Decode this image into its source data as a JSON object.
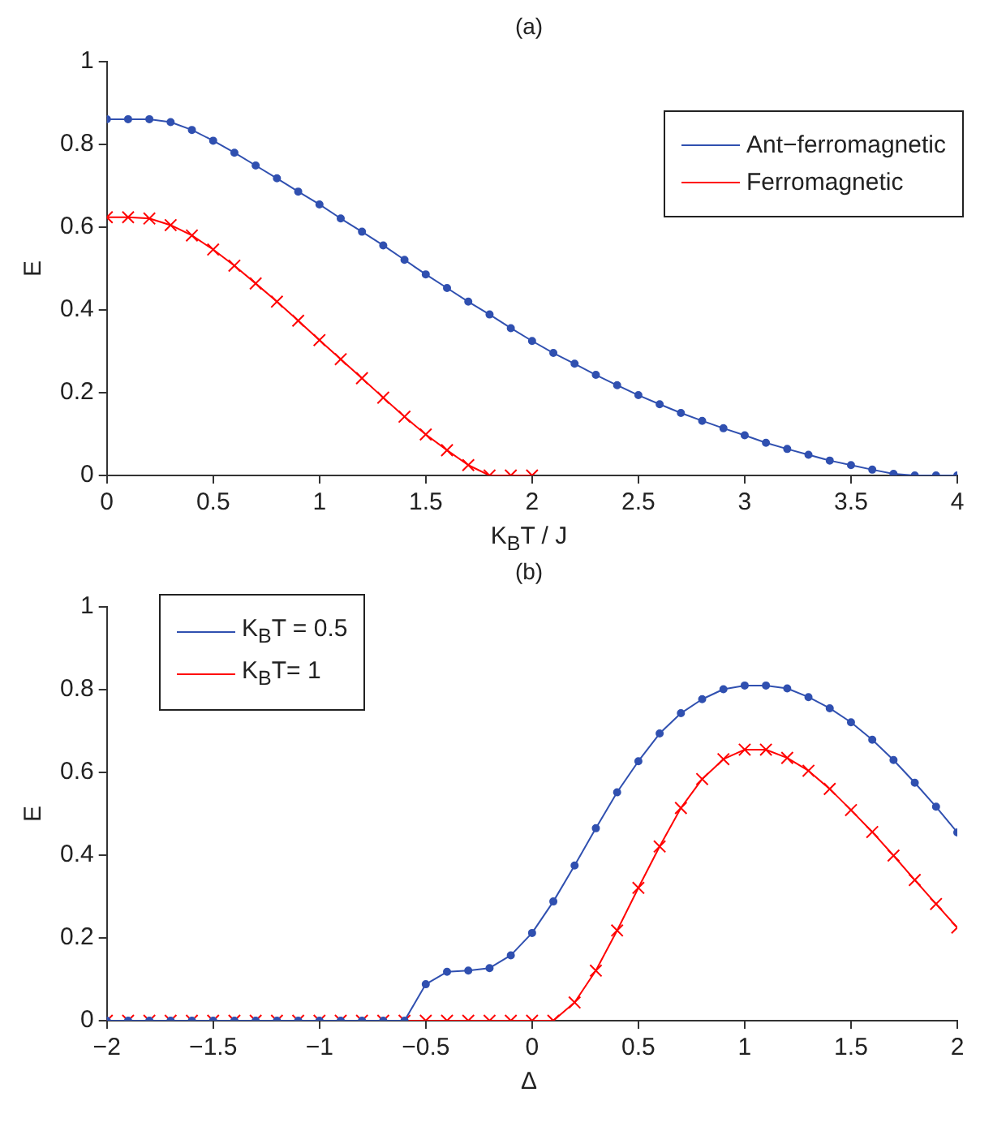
{
  "chart_data": [
    {
      "type": "line",
      "title": "(a)",
      "xlabel": "K$_{B}$T / J",
      "ylabel": "E",
      "xlim": [
        0,
        4
      ],
      "xticks": [
        0,
        0.5,
        1,
        1.5,
        2,
        2.5,
        3,
        3.5,
        4
      ],
      "ylim": [
        0,
        1
      ],
      "yticks": [
        0,
        0.2,
        0.4,
        0.6,
        0.8,
        1
      ],
      "grid": false,
      "legend": "right",
      "series": [
        {
          "name": "Ant−ferromagnetic",
          "color": "#3050b0",
          "marker": "circle",
          "x": [
            0,
            0.1,
            0.2,
            0.3,
            0.4,
            0.5,
            0.6,
            0.7,
            0.8,
            0.9,
            1,
            1.1,
            1.2,
            1.3,
            1.4,
            1.5,
            1.6,
            1.7,
            1.8,
            1.9,
            2,
            2.1,
            2.2,
            2.3,
            2.4,
            2.5,
            2.6,
            2.7,
            2.8,
            2.9,
            3,
            3.1,
            3.2,
            3.3,
            3.4,
            3.5,
            3.6,
            3.7,
            3.8,
            3.9,
            4
          ],
          "values": [
            0.861,
            0.861,
            0.861,
            0.854,
            0.835,
            0.809,
            0.78,
            0.749,
            0.718,
            0.686,
            0.655,
            0.621,
            0.589,
            0.556,
            0.521,
            0.486,
            0.453,
            0.42,
            0.389,
            0.356,
            0.325,
            0.296,
            0.27,
            0.243,
            0.218,
            0.194,
            0.172,
            0.151,
            0.132,
            0.114,
            0.097,
            0.079,
            0.064,
            0.05,
            0.036,
            0.025,
            0.014,
            0.004,
            0,
            0,
            0
          ]
        },
        {
          "name": "Ferromagnetic",
          "color": "#ff0000",
          "marker": "cross",
          "x": [
            0,
            0.1,
            0.2,
            0.3,
            0.4,
            0.5,
            0.6,
            0.7,
            0.8,
            0.9,
            1,
            1.1,
            1.2,
            1.3,
            1.4,
            1.5,
            1.6,
            1.7,
            1.8,
            1.9,
            2
          ],
          "values": [
            0.624,
            0.624,
            0.621,
            0.605,
            0.58,
            0.546,
            0.507,
            0.464,
            0.42,
            0.374,
            0.327,
            0.281,
            0.235,
            0.188,
            0.142,
            0.099,
            0.061,
            0.025,
            0,
            0,
            0
          ]
        }
      ]
    },
    {
      "type": "line",
      "title": "(b)",
      "xlabel": "Δ",
      "ylabel": "E",
      "xlim": [
        -2,
        2
      ],
      "xticks": [
        -2,
        -1.5,
        -1,
        -0.5,
        0,
        0.5,
        1,
        1.5,
        2
      ],
      "ylim": [
        0,
        1
      ],
      "yticks": [
        0,
        0.2,
        0.4,
        0.6,
        0.8,
        1
      ],
      "grid": false,
      "legend": "top left",
      "x": [
        -2,
        -1.9,
        -1.8,
        -1.7,
        -1.6,
        -1.5,
        -1.4,
        -1.3,
        -1.2,
        -1.1,
        -1,
        -0.9,
        -0.8,
        -0.7,
        -0.6,
        -0.5,
        -0.4,
        -0.3,
        -0.2,
        -0.1,
        0,
        0.1,
        0.2,
        0.3,
        0.4,
        0.5,
        0.6,
        0.7,
        0.8,
        0.9,
        1,
        1.1,
        1.2,
        1.3,
        1.4,
        1.5,
        1.6,
        1.7,
        1.8,
        1.9,
        2
      ],
      "series": [
        {
          "name": "K$_{B}$T = 0.5",
          "color": "#3050b0",
          "marker": "circle",
          "values": [
            0,
            0,
            0,
            0,
            0,
            0,
            0,
            0,
            0,
            0,
            0,
            0,
            0,
            0,
            0,
            0.088,
            0.118,
            0.121,
            0.127,
            0.158,
            0.212,
            0.288,
            0.375,
            0.465,
            0.552,
            0.627,
            0.694,
            0.743,
            0.777,
            0.801,
            0.81,
            0.81,
            0.803,
            0.782,
            0.755,
            0.721,
            0.679,
            0.63,
            0.575,
            0.517,
            0.455
          ]
        },
        {
          "name": "K$_{B}$T= 1",
          "color": "#ff0000",
          "marker": "cross",
          "values": [
            0,
            0,
            0,
            0,
            0,
            0,
            0,
            0,
            0,
            0,
            0,
            0,
            0,
            0,
            0,
            0,
            0,
            0,
            0,
            0,
            0,
            0,
            0.044,
            0.121,
            0.218,
            0.321,
            0.421,
            0.514,
            0.584,
            0.632,
            0.655,
            0.655,
            0.635,
            0.604,
            0.56,
            0.509,
            0.456,
            0.399,
            0.34,
            0.282,
            0.225
          ]
        }
      ]
    }
  ]
}
